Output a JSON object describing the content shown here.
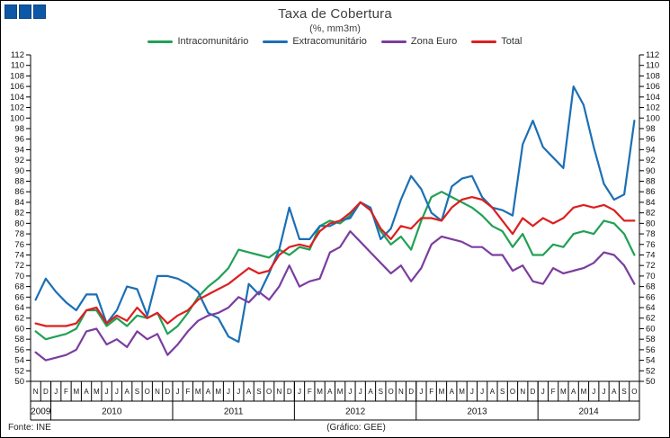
{
  "header": {
    "title": "Taxa de Cobertura",
    "subtitle": "(%, mm3m)"
  },
  "footer": {
    "source": "Fonte: INE",
    "credit": "(Gráfico: GEE)"
  },
  "chart_data": {
    "type": "line",
    "title": "Taxa de Cobertura",
    "subtitle": "(%, mm3m)",
    "ylim": [
      50,
      112
    ],
    "ytick_step": 2,
    "y_axis_sides": "both",
    "grid": false,
    "legend_position": "top",
    "months": [
      "N",
      "D",
      "J",
      "F",
      "M",
      "A",
      "M",
      "J",
      "J",
      "A",
      "S",
      "O",
      "N",
      "D",
      "J",
      "F",
      "M",
      "A",
      "M",
      "J",
      "J",
      "A",
      "S",
      "O",
      "N",
      "D",
      "J",
      "F",
      "M",
      "A",
      "M",
      "J",
      "J",
      "A",
      "S",
      "O",
      "N",
      "D",
      "J",
      "F",
      "M",
      "A",
      "M",
      "J",
      "J",
      "A",
      "S",
      "O",
      "N",
      "D",
      "J",
      "F",
      "M",
      "A",
      "M",
      "J",
      "J",
      "A",
      "S",
      "O"
    ],
    "year_groups": [
      {
        "label": "2009",
        "count": 2
      },
      {
        "label": "2010",
        "count": 12
      },
      {
        "label": "2011",
        "count": 12
      },
      {
        "label": "2012",
        "count": 12
      },
      {
        "label": "2013",
        "count": 12
      },
      {
        "label": "2014",
        "count": 10
      }
    ],
    "series": [
      {
        "name": "Intracomunitário",
        "color": "#21a055",
        "values": [
          59.5,
          58,
          58.5,
          59,
          60,
          63.5,
          63.5,
          60.5,
          62,
          60.5,
          62.5,
          62,
          63,
          59,
          60.5,
          63,
          66,
          68,
          69.5,
          71.5,
          75,
          74.5,
          74,
          73.5,
          75,
          74,
          75.5,
          75,
          79.5,
          80.5,
          80,
          81.5,
          84,
          82.5,
          78.5,
          76,
          77.5,
          75,
          80.5,
          85,
          86,
          85,
          84,
          83,
          81.5,
          79.5,
          78.5,
          75.5,
          78,
          74,
          74,
          76,
          75.5,
          78,
          78.5,
          78,
          80.5,
          80,
          78,
          74
        ]
      },
      {
        "name": "Extracomunitário",
        "color": "#1b6fb5",
        "values": [
          65.5,
          69.5,
          67,
          65,
          63.5,
          66.5,
          66.5,
          61,
          63.5,
          68,
          67.5,
          62.5,
          70,
          70,
          69.5,
          68.5,
          67,
          63,
          62,
          58.5,
          57.5,
          68.5,
          66.5,
          70.5,
          75,
          83,
          77,
          77,
          79.5,
          79.5,
          80.5,
          81,
          84,
          83,
          77,
          79,
          84.5,
          89,
          86.5,
          82,
          80.5,
          87,
          88.5,
          89,
          85,
          83,
          82.5,
          81.5,
          95,
          99.5,
          94.5,
          92.5,
          90.5,
          106,
          102.5,
          94.5,
          87.5,
          84.5,
          85.5,
          99.5
        ]
      },
      {
        "name": "Zona Euro",
        "color": "#7b3da0",
        "values": [
          55.5,
          54,
          54.5,
          55,
          56,
          59.5,
          60,
          57,
          58,
          56.5,
          59.5,
          58,
          59,
          55,
          57,
          59.5,
          61.5,
          62.5,
          63,
          64,
          66,
          65,
          67,
          65.5,
          68,
          72,
          68,
          69,
          69.5,
          74.5,
          75.5,
          78.5,
          76.5,
          74.5,
          72.5,
          70.5,
          72,
          69,
          71.5,
          76,
          77.5,
          77,
          76.5,
          75.5,
          75.5,
          74,
          74,
          71,
          72,
          69,
          68.5,
          71.5,
          70.5,
          71,
          71.5,
          72.5,
          74.5,
          74,
          72,
          68.5
        ]
      },
      {
        "name": "Total",
        "color": "#dc1f1f",
        "values": [
          61,
          60.5,
          60.5,
          60.5,
          61,
          63.5,
          64,
          61,
          62.5,
          61.5,
          64,
          62,
          63,
          61,
          62.5,
          63.5,
          65.5,
          66.5,
          67.5,
          68.5,
          70,
          71.5,
          70.5,
          71,
          74,
          75.5,
          76,
          75.5,
          78.5,
          80,
          80.5,
          82,
          84,
          82.5,
          79,
          77,
          79.5,
          79,
          81,
          81,
          80.5,
          83,
          84.5,
          85,
          84.5,
          83,
          80.5,
          78,
          81,
          79.5,
          81,
          80,
          81,
          83,
          83.5,
          83,
          83.5,
          82.5,
          80.5,
          80.5
        ]
      }
    ]
  }
}
